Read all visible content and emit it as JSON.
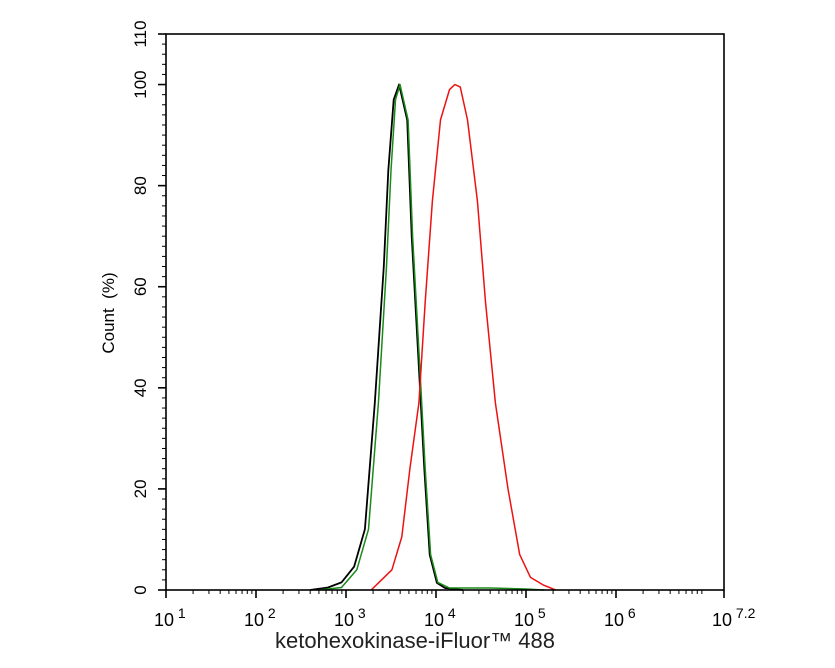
{
  "chart_data": {
    "type": "line",
    "title": "",
    "xlabel": "ketohexokinase-iFluor™ 488",
    "ylabel": "Count  (%)",
    "x_scale": "log",
    "xlim": [
      10,
      15848932
    ],
    "ylim": [
      0,
      110
    ],
    "grid": false,
    "x_ticks": [
      {
        "base": "10",
        "exp": "1",
        "value": 10
      },
      {
        "base": "10",
        "exp": "2",
        "value": 100
      },
      {
        "base": "10",
        "exp": "3",
        "value": 1000
      },
      {
        "base": "10",
        "exp": "4",
        "value": 10000
      },
      {
        "base": "10",
        "exp": "5",
        "value": 100000
      },
      {
        "base": "10",
        "exp": "6",
        "value": 1000000
      },
      {
        "base": "10",
        "exp": "7.2",
        "value": 15848932
      }
    ],
    "y_ticks": [
      "0",
      "20",
      "40",
      "60",
      "80",
      "100",
      "110"
    ],
    "series": [
      {
        "color": "#000000",
        "points": [
          [
            398,
            0
          ],
          [
            631,
            0.5
          ],
          [
            891,
            1.5
          ],
          [
            1230,
            4.6
          ],
          [
            1622,
            12
          ],
          [
            2089,
            37
          ],
          [
            2630,
            64
          ],
          [
            2951,
            83
          ],
          [
            3388,
            97
          ],
          [
            3890,
            100
          ],
          [
            4786,
            93
          ],
          [
            5370,
            70
          ],
          [
            6457,
            44
          ],
          [
            7413,
            24
          ],
          [
            8511,
            7
          ],
          [
            10233,
            1.4
          ],
          [
            12589,
            0.4
          ],
          [
            19953,
            0
          ]
        ]
      },
      {
        "color": "#1a8a1a",
        "points": [
          [
            501,
            0
          ],
          [
            891,
            0.5
          ],
          [
            1318,
            4
          ],
          [
            1778,
            12
          ],
          [
            2291,
            37
          ],
          [
            2818,
            64
          ],
          [
            3162,
            83
          ],
          [
            3548,
            97
          ],
          [
            3981,
            100
          ],
          [
            4898,
            93
          ],
          [
            5495,
            70
          ],
          [
            6607,
            44
          ],
          [
            7586,
            24
          ],
          [
            8710,
            7
          ],
          [
            10471,
            1.5
          ],
          [
            14125,
            0.4
          ],
          [
            39811,
            0.4
          ],
          [
            100000,
            0.2
          ],
          [
            158489,
            0
          ]
        ]
      },
      {
        "color": "#ee1111",
        "points": [
          [
            1905,
            0
          ],
          [
            3236,
            4
          ],
          [
            4169,
            10.5
          ],
          [
            5129,
            24
          ],
          [
            6457,
            37
          ],
          [
            7586,
            57
          ],
          [
            9120,
            77
          ],
          [
            11220,
            93
          ],
          [
            14125,
            99
          ],
          [
            16218,
            100
          ],
          [
            18621,
            99.5
          ],
          [
            22387,
            93
          ],
          [
            28840,
            77
          ],
          [
            35481,
            57
          ],
          [
            45709,
            37
          ],
          [
            63096,
            20
          ],
          [
            85114,
            7
          ],
          [
            112202,
            2.5
          ],
          [
            154882,
            1
          ],
          [
            213796,
            0
          ]
        ]
      }
    ]
  }
}
